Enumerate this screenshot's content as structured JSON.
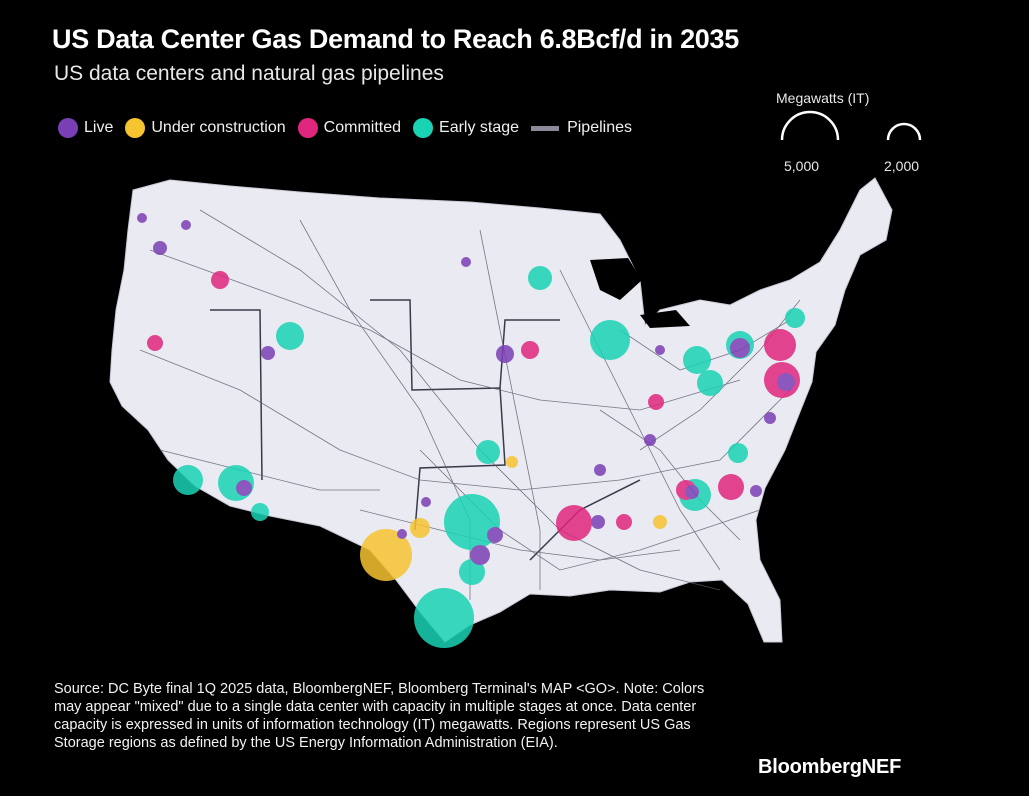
{
  "title": "US Data Center Gas Demand to Reach 6.8Bcf/d in 2035",
  "subtitle": "US data centers and natural gas pipelines",
  "legend": [
    {
      "label": "Live",
      "color": "#7b3fb5"
    },
    {
      "label": "Under construction",
      "color": "#f6c431"
    },
    {
      "label": "Committed",
      "color": "#e0267d"
    },
    {
      "label": "Early stage",
      "color": "#19d3b4"
    },
    {
      "label": "Pipelines",
      "color": "#8a8a9a"
    }
  ],
  "size_legend": {
    "title": "Megawatts (IT)",
    "large_label": "5,000",
    "small_label": "2,000"
  },
  "source": "Source: DC Byte final 1Q 2025 data, BloombergNEF, Bloomberg Terminal's MAP <GO>. Note: Colors may appear \"mixed\" due to a single data center with capacity in multiple stages at once. Data center capacity is expressed in units of information technology (IT) megawatts. Regions represent US Gas Storage regions as defined by the US Energy Information Administration (EIA).",
  "brand": "BloombergNEF",
  "colors": {
    "live": "#7b3fb5",
    "construction": "#f6c431",
    "committed": "#e0267d",
    "early": "#19d3b4",
    "land": "#e9eaf2",
    "pipeline": "#5a5a6a"
  }
}
